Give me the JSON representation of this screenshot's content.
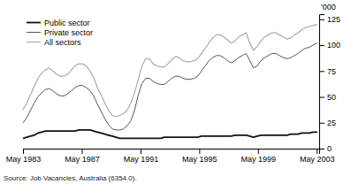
{
  "chart_data": {
    "type": "line",
    "source": "Source: Job Vacancies, Australia (6354.0).",
    "ylabel": "'000",
    "x": [
      1983.3333,
      1983.5865,
      1983.8397,
      1984.0928,
      1984.346,
      1984.5992,
      1984.8523,
      1985.1055,
      1985.3586,
      1985.6118,
      1985.865,
      1986.1181,
      1986.3713,
      1986.6245,
      1986.8776,
      1987.1308,
      1987.384,
      1987.6371,
      1987.8903,
      1988.1435,
      1988.3966,
      1988.6498,
      1988.903,
      1989.1561,
      1989.4093,
      1989.6624,
      1989.9156,
      1990.1688,
      1990.4219,
      1990.6751,
      1990.9283,
      1991.1814,
      1991.4346,
      1991.6878,
      1991.9409,
      1992.1941,
      1992.4473,
      1992.7004,
      1992.9536,
      1993.2068,
      1993.4599,
      1993.7131,
      1993.9662,
      1994.2194,
      1994.4726,
      1994.7257,
      1994.9789,
      1995.2321,
      1995.4852,
      1995.7384,
      1995.9916,
      1996.2447,
      1996.4979,
      1996.7511,
      1997.0042,
      1997.2574,
      1997.5105,
      1997.7637,
      1998.0169,
      1998.27,
      1998.5232,
      1998.7764,
      1999.0295,
      1999.2827,
      1999.5359,
      1999.789,
      2000.0422,
      2000.2954,
      2000.5485,
      2000.8017,
      2001.0549,
      2001.308,
      2001.5612,
      2001.8143,
      2002.0675,
      2002.3207,
      2002.5738,
      2002.827,
      2003.0802,
      2003.3333
    ],
    "xlim": [
      1983.33,
      2003.5
    ],
    "xticks": [
      {
        "value": 1983.3333,
        "label": "May 1983"
      },
      {
        "value": 1987.3333,
        "label": "May 1987"
      },
      {
        "value": 1991.3333,
        "label": "May 1991"
      },
      {
        "value": 1995.3333,
        "label": "May 1995"
      },
      {
        "value": 1999.3333,
        "label": "May 1999"
      },
      {
        "value": 2003.3333,
        "label": "May 2003"
      }
    ],
    "ylim": [
      0,
      130
    ],
    "yticks": [
      0,
      25,
      50,
      75,
      100,
      125
    ],
    "grid": false,
    "legend": "upper left",
    "series": [
      {
        "name": "Public sector",
        "color": "#111111",
        "values": [
          10,
          11,
          12,
          13,
          15,
          16,
          17,
          17,
          17,
          17,
          17,
          17,
          17,
          17,
          17,
          18,
          18,
          18,
          18,
          17,
          16,
          15,
          14,
          13,
          12,
          11,
          10,
          10,
          10,
          10,
          10,
          10,
          10,
          10,
          10,
          10,
          10,
          10,
          11,
          11,
          11,
          11,
          11,
          11,
          11,
          11,
          11,
          11,
          12,
          12,
          12,
          12,
          12,
          12,
          12,
          12,
          12,
          13,
          13,
          13,
          13,
          12,
          11,
          12,
          13,
          13,
          13,
          13,
          13,
          13,
          13,
          13,
          14,
          14,
          14,
          15,
          15,
          15,
          16,
          16
        ]
      },
      {
        "name": "Private sector",
        "color": "#444444",
        "values": [
          25,
          30,
          37,
          44,
          50,
          54,
          57,
          58,
          56,
          53,
          51,
          51,
          53,
          56,
          59,
          61,
          61,
          59,
          56,
          51,
          43,
          36,
          29,
          23,
          19,
          18,
          18,
          19,
          22,
          27,
          37,
          52,
          63,
          68,
          68,
          65,
          63,
          62,
          62,
          65,
          68,
          70,
          70,
          68,
          67,
          67,
          68,
          70,
          75,
          80,
          85,
          88,
          90,
          90,
          88,
          85,
          83,
          85,
          88,
          90,
          92,
          85,
          78,
          80,
          85,
          88,
          90,
          92,
          92,
          90,
          88,
          87,
          88,
          90,
          92,
          95,
          97,
          98,
          100,
          102
        ]
      },
      {
        "name": "All sectors",
        "color": "#aaaaaa",
        "values": [
          38,
          44,
          52,
          60,
          68,
          73,
          76,
          78,
          75,
          72,
          70,
          70,
          72,
          76,
          80,
          82,
          82,
          80,
          75,
          69,
          59,
          52,
          44,
          37,
          32,
          31,
          32,
          34,
          37,
          44,
          54,
          67,
          80,
          87,
          87,
          82,
          80,
          79,
          79,
          82,
          86,
          89,
          88,
          85,
          84,
          84,
          85,
          87,
          92,
          97,
          102,
          107,
          110,
          110,
          108,
          105,
          102,
          104,
          108,
          110,
          112,
          102,
          95,
          99,
          104,
          108,
          110,
          112,
          112,
          110,
          108,
          106,
          107,
          110,
          112,
          115,
          117,
          118,
          119,
          120
        ]
      }
    ]
  }
}
